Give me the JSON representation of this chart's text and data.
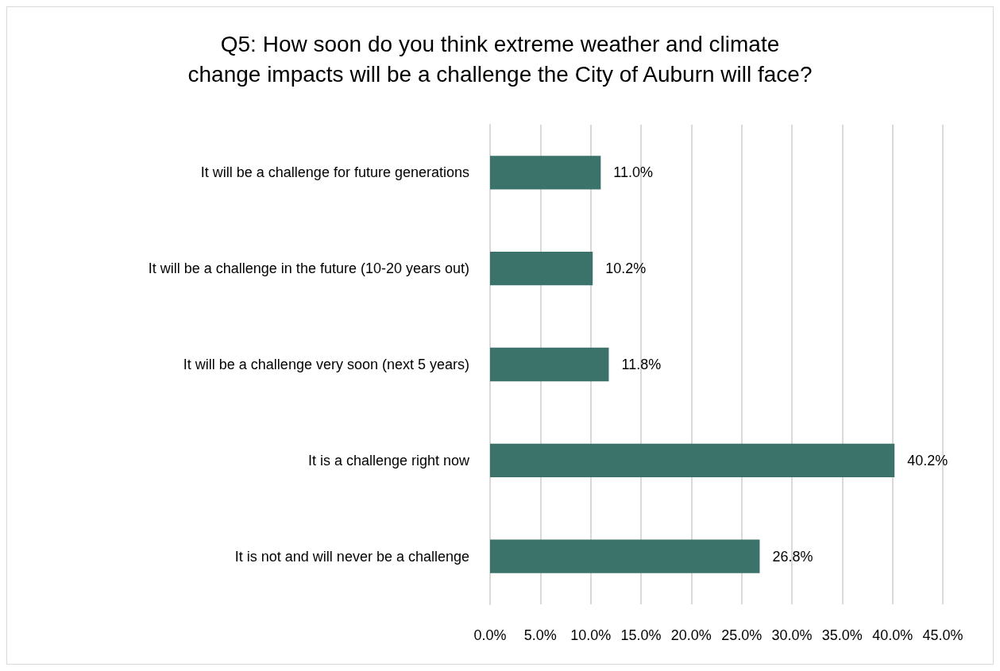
{
  "chart_data": {
    "type": "bar",
    "orientation": "horizontal",
    "title": "Q5: How soon do you think extreme weather and climate\nchange impacts will be a challenge the City of Auburn will face?",
    "categories": [
      "It will be a challenge for future generations",
      "It will be a challenge in the future (10-20 years out)",
      "It will be a challenge very soon (next 5 years)",
      "It is a challenge right now",
      "It is not and will never be a challenge"
    ],
    "values": [
      11.0,
      10.2,
      11.8,
      40.2,
      26.8
    ],
    "value_labels": [
      "11.0%",
      "10.2%",
      "11.8%",
      "40.2%",
      "26.8%"
    ],
    "color": "#3b736b",
    "xlim": [
      0,
      45
    ],
    "xticks": [
      {
        "value": 0,
        "label": "0.0%"
      },
      {
        "value": 5,
        "label": "5.0%"
      },
      {
        "value": 10,
        "label": "10.0%"
      },
      {
        "value": 15,
        "label": "15.0%"
      },
      {
        "value": 20,
        "label": "20.0%"
      },
      {
        "value": 25,
        "label": "25.0%"
      },
      {
        "value": 30,
        "label": "30.0%"
      },
      {
        "value": 35,
        "label": "35.0%"
      },
      {
        "value": 40,
        "label": "40.0%"
      },
      {
        "value": 45,
        "label": "45.0%"
      }
    ],
    "grid": "x"
  }
}
